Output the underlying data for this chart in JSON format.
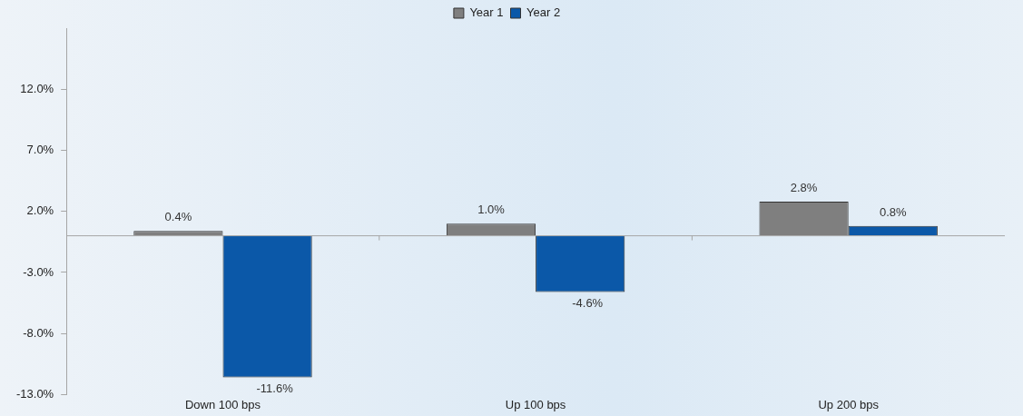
{
  "chart_data": {
    "type": "bar",
    "categories": [
      "Down 100 bps",
      "Up 100 bps",
      "Up 200 bps"
    ],
    "series": [
      {
        "name": "Year 1",
        "color": "#7f7f7f",
        "values": [
          0.4,
          1.0,
          2.8
        ],
        "value_labels": [
          "0.4%",
          "1.0%",
          "2.8%"
        ]
      },
      {
        "name": "Year 2",
        "color": "#0b58a8",
        "values": [
          -11.6,
          -4.6,
          0.8
        ],
        "value_labels": [
          "-11.6%",
          "-4.6%",
          "0.8%"
        ]
      }
    ],
    "ylim": [
      -13,
      17
    ],
    "yticks": [
      {
        "value": -13,
        "label": "-13.0%"
      },
      {
        "value": -8,
        "label": "-8.0%"
      },
      {
        "value": -3,
        "label": "-3.0%"
      },
      {
        "value": 2,
        "label": "2.0%"
      },
      {
        "value": 7,
        "label": "7.0%"
      },
      {
        "value": 12,
        "label": "12.0%"
      }
    ],
    "grid": false,
    "legend": "top"
  }
}
